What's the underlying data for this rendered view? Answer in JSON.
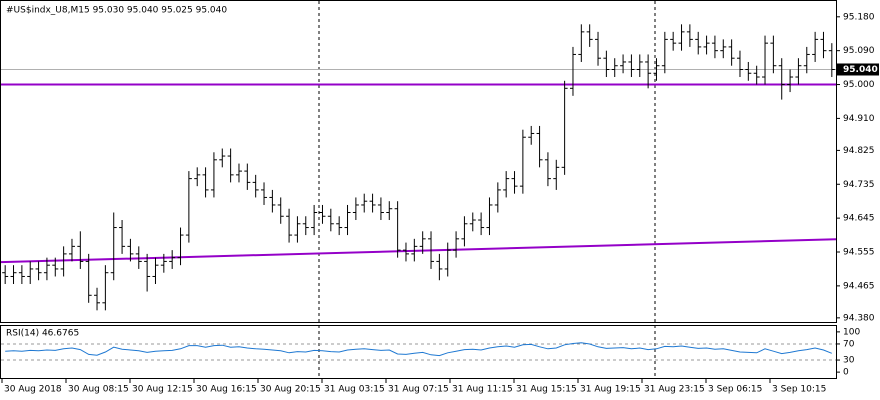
{
  "chart_data": {
    "type": "ohlc",
    "title": "#US$indx_U8,M15  95.030 95.040 95.025 95.040",
    "color": "#000000",
    "open": [
      94.5,
      94.49,
      94.5,
      94.49,
      94.51,
      94.5,
      94.52,
      94.51,
      94.55,
      94.57,
      94.53,
      94.44,
      94.42,
      94.5,
      94.62,
      94.57,
      94.55,
      94.53,
      94.49,
      94.52,
      94.53,
      94.54,
      94.6,
      94.75,
      94.76,
      94.72,
      94.8,
      94.81,
      94.76,
      94.77,
      94.74,
      94.72,
      94.7,
      94.68,
      94.65,
      94.6,
      94.63,
      94.62,
      94.66,
      94.65,
      94.63,
      94.62,
      94.66,
      94.68,
      94.69,
      94.68,
      94.66,
      94.67,
      94.56,
      94.55,
      94.57,
      94.59,
      94.53,
      94.51,
      94.56,
      94.59,
      94.63,
      94.64,
      94.62,
      94.68,
      94.72,
      94.75,
      94.73,
      94.86,
      94.87,
      94.8,
      94.75,
      94.78,
      94.99,
      95.08,
      95.14,
      95.12,
      95.07,
      95.04,
      95.05,
      95.06,
      95.04,
      95.06,
      95.03,
      95.05,
      95.12,
      95.11,
      95.14,
      95.12,
      95.1,
      95.11,
      95.09,
      95.1,
      95.07,
      95.04,
      95.03,
      95.02,
      95.11,
      95.05,
      95.0,
      95.02,
      95.05,
      95.08,
      95.12,
      95.09
    ],
    "high": [
      94.52,
      94.52,
      94.52,
      94.53,
      94.53,
      94.54,
      94.54,
      94.57,
      94.59,
      94.61,
      94.55,
      94.46,
      94.52,
      94.66,
      94.64,
      94.59,
      94.57,
      94.55,
      94.54,
      94.55,
      94.56,
      94.62,
      94.77,
      94.78,
      94.78,
      94.82,
      94.83,
      94.83,
      94.79,
      94.79,
      94.76,
      94.74,
      94.72,
      94.7,
      94.67,
      94.65,
      94.65,
      94.68,
      94.68,
      94.67,
      94.65,
      94.68,
      94.7,
      94.71,
      94.71,
      94.7,
      94.69,
      94.69,
      94.58,
      94.59,
      94.61,
      94.61,
      94.55,
      94.58,
      94.61,
      94.65,
      94.66,
      94.66,
      94.7,
      94.74,
      94.77,
      94.77,
      94.88,
      94.89,
      94.89,
      94.82,
      94.8,
      95.01,
      95.1,
      95.16,
      95.16,
      95.14,
      95.09,
      95.07,
      95.08,
      95.08,
      95.08,
      95.08,
      95.07,
      95.14,
      95.14,
      95.16,
      95.16,
      95.14,
      95.13,
      95.13,
      95.12,
      95.12,
      95.09,
      95.06,
      95.05,
      95.13,
      95.13,
      95.07,
      95.04,
      95.07,
      95.1,
      95.14,
      95.14,
      95.11
    ],
    "low": [
      94.47,
      94.47,
      94.47,
      94.47,
      94.48,
      94.48,
      94.49,
      94.49,
      94.53,
      94.51,
      94.42,
      94.4,
      94.4,
      94.48,
      94.55,
      94.53,
      94.51,
      94.45,
      94.47,
      94.5,
      94.51,
      94.52,
      94.58,
      94.73,
      94.7,
      94.7,
      94.78,
      94.74,
      94.74,
      94.72,
      94.7,
      94.68,
      94.66,
      94.63,
      94.58,
      94.58,
      94.6,
      94.6,
      94.63,
      94.61,
      94.6,
      94.6,
      94.64,
      94.66,
      94.66,
      94.64,
      94.64,
      94.54,
      94.53,
      94.53,
      94.55,
      94.51,
      94.48,
      94.49,
      94.54,
      94.57,
      94.61,
      94.6,
      94.6,
      94.66,
      94.7,
      94.71,
      94.71,
      94.84,
      94.78,
      94.73,
      94.72,
      94.76,
      94.97,
      95.06,
      95.1,
      95.05,
      95.02,
      95.02,
      95.03,
      95.02,
      95.02,
      94.99,
      95.01,
      95.03,
      95.09,
      95.09,
      95.1,
      95.08,
      95.08,
      95.07,
      95.07,
      95.05,
      95.02,
      95.01,
      95.0,
      95.0,
      95.03,
      94.96,
      94.98,
      95.0,
      95.03,
      95.06,
      95.07,
      95.02
    ],
    "close": [
      94.49,
      94.5,
      94.49,
      94.51,
      94.5,
      94.52,
      94.51,
      94.55,
      94.57,
      94.53,
      94.44,
      94.42,
      94.5,
      94.62,
      94.57,
      94.55,
      94.53,
      94.49,
      94.52,
      94.53,
      94.54,
      94.6,
      94.75,
      94.76,
      94.72,
      94.8,
      94.81,
      94.76,
      94.77,
      94.74,
      94.72,
      94.7,
      94.68,
      94.65,
      94.6,
      94.63,
      94.62,
      94.66,
      94.65,
      94.63,
      94.62,
      94.66,
      94.68,
      94.69,
      94.68,
      94.66,
      94.67,
      94.56,
      94.55,
      94.57,
      94.59,
      94.53,
      94.51,
      94.56,
      94.59,
      94.63,
      94.64,
      94.62,
      94.68,
      94.72,
      94.75,
      94.73,
      94.86,
      94.87,
      94.8,
      94.75,
      94.78,
      94.99,
      95.08,
      95.14,
      95.12,
      95.07,
      95.04,
      95.05,
      95.06,
      95.04,
      95.06,
      95.03,
      95.05,
      95.12,
      95.11,
      95.14,
      95.12,
      95.1,
      95.11,
      95.09,
      95.1,
      95.07,
      95.04,
      95.03,
      95.02,
      95.11,
      95.05,
      95.0,
      95.02,
      95.05,
      95.08,
      95.12,
      95.09,
      95.04
    ],
    "ylim": [
      94.369,
      95.222
    ],
    "yticks": [
      {
        "value": 95.18,
        "label": "95.180"
      },
      {
        "value": 95.09,
        "label": "95.090"
      },
      {
        "value": 95.0,
        "label": "95.000"
      },
      {
        "value": 94.91,
        "label": "94.910"
      },
      {
        "value": 94.825,
        "label": "94.825"
      },
      {
        "value": 94.735,
        "label": "94.735"
      },
      {
        "value": 94.645,
        "label": "94.645"
      },
      {
        "value": 94.555,
        "label": "94.555"
      },
      {
        "value": 94.465,
        "label": "94.465"
      },
      {
        "value": 94.38,
        "label": "94.380"
      }
    ],
    "last_price": {
      "value": 95.04,
      "label": "95.040"
    },
    "level": 95.0,
    "trendline": [
      94.528,
      94.589
    ],
    "line_color": "#9400c8",
    "x_labels": [
      "30 Aug 2018",
      "30 Aug 08:15",
      "30 Aug 12:15",
      "30 Aug 16:15",
      "30 Aug 20:15",
      "31 Aug 03:15",
      "31 Aug 07:15",
      "31 Aug 11:15",
      "31 Aug 15:15",
      "31 Aug 19:15",
      "31 Aug 23:15",
      "3 Sep 06:15",
      "3 Sep 10:15"
    ],
    "rsi": {
      "title": "RSI(14) 46.6765",
      "color": "#1e78d2",
      "values": [
        52,
        53,
        52,
        54,
        53,
        55,
        54,
        58,
        60,
        56,
        44,
        42,
        50,
        62,
        57,
        55,
        53,
        49,
        52,
        53,
        54,
        58,
        66,
        66,
        62,
        66,
        67,
        62,
        63,
        60,
        58,
        57,
        55,
        53,
        48,
        51,
        50,
        54,
        53,
        51,
        50,
        55,
        57,
        58,
        56,
        54,
        55,
        45,
        44,
        47,
        49,
        43,
        41,
        48,
        52,
        56,
        57,
        55,
        60,
        63,
        65,
        62,
        68,
        69,
        63,
        58,
        60,
        68,
        71,
        73,
        70,
        63,
        59,
        60,
        61,
        58,
        60,
        56,
        58,
        64,
        63,
        65,
        62,
        59,
        60,
        57,
        58,
        54,
        50,
        49,
        48,
        58,
        52,
        46,
        49,
        53,
        56,
        60,
        55,
        46.6765
      ],
      "ylim": [
        -14.6,
        114.6
      ],
      "yticks": [
        100,
        70,
        30,
        0
      ],
      "levels": [
        70,
        30
      ]
    }
  }
}
